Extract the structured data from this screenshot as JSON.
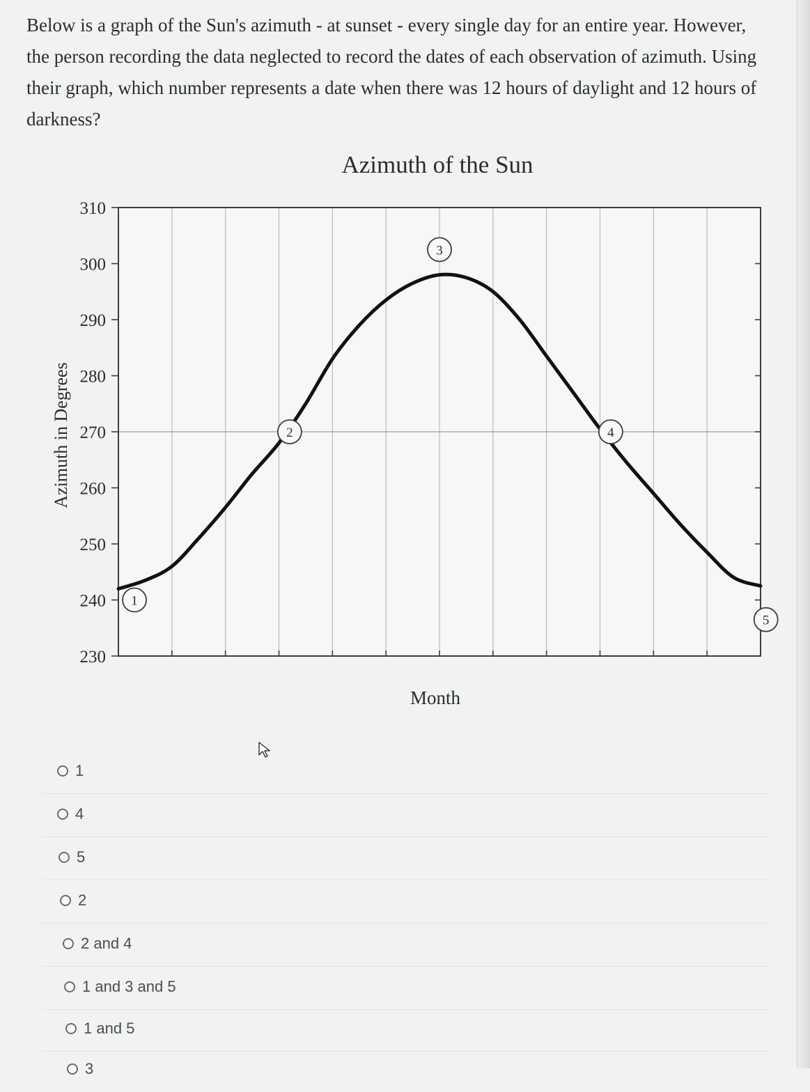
{
  "question": {
    "lines": [
      "Below is a graph of the Sun's azimuth - at sunset - every single day for an entire year. However,",
      "the person recording the data neglected to record the dates of each observation of azimuth. Using",
      "their graph, which number represents a date when there was 12 hours of daylight and 12 hours of",
      "darkness?"
    ]
  },
  "chart_data": {
    "type": "line",
    "title": "Azimuth of the Sun",
    "xlabel": "Month",
    "ylabel": "Azimuth in Degrees",
    "ylim": [
      230,
      310
    ],
    "yticks": [
      "310",
      "300",
      "290",
      "280",
      "270",
      "260",
      "250",
      "240",
      "230"
    ],
    "xlim": [
      0,
      12
    ],
    "grid": true,
    "series": [
      {
        "x": [
          0,
          0.5,
          1,
          1.5,
          2,
          2.5,
          3,
          3.5,
          4,
          4.5,
          5,
          5.5,
          6,
          6.5,
          7,
          7.5,
          8,
          8.5,
          9,
          9.5,
          10,
          10.5,
          11,
          11.5,
          12
        ],
        "values": [
          242,
          243.5,
          246,
          251,
          256.5,
          262.5,
          268,
          275,
          283,
          289,
          293.5,
          296.5,
          298,
          297.5,
          295,
          290,
          283.5,
          277,
          270.5,
          264.5,
          259,
          253.5,
          248.5,
          244,
          242.5
        ]
      }
    ],
    "markers": [
      {
        "label": "1",
        "x": 0.3,
        "y": 240
      },
      {
        "label": "2",
        "x": 3.2,
        "y": 270
      },
      {
        "label": "3",
        "x": 6.0,
        "y": 302.5
      },
      {
        "label": "4",
        "x": 9.2,
        "y": 270
      },
      {
        "label": "5",
        "x": 12.1,
        "y": 236.5
      }
    ]
  },
  "options": [
    {
      "label": "1"
    },
    {
      "label": "4"
    },
    {
      "label": "5"
    },
    {
      "label": "2"
    },
    {
      "label": "2 and 4"
    },
    {
      "label": "1 and 3 and 5"
    },
    {
      "label": "1 and 5"
    },
    {
      "label": "3"
    }
  ]
}
